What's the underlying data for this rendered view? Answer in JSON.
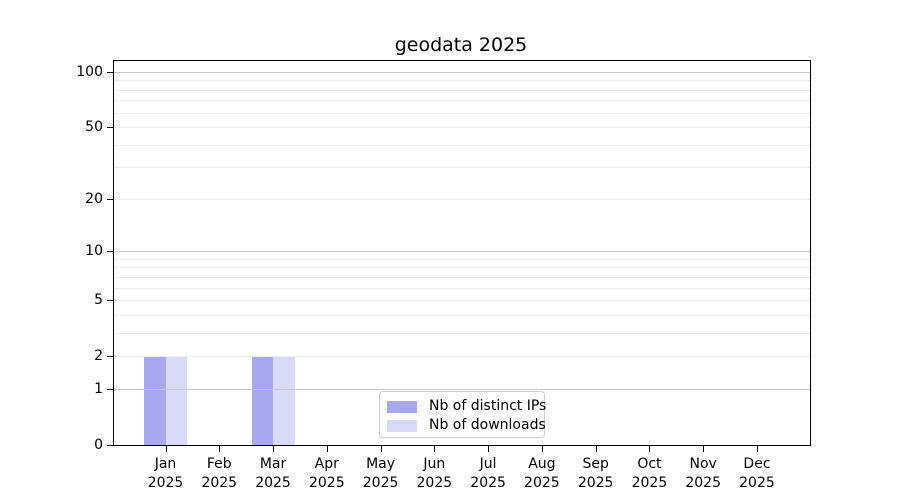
{
  "chart_data": {
    "type": "bar",
    "title": "geodata 2025",
    "categories": [
      "Jan",
      "Feb",
      "Mar",
      "Apr",
      "May",
      "Jun",
      "Jul",
      "Aug",
      "Sep",
      "Oct",
      "Nov",
      "Dec"
    ],
    "category_year": "2025",
    "series": [
      {
        "name": "Nb of distinct IPs",
        "color": "#a8a8f0",
        "values": [
          2,
          0,
          2,
          0,
          0,
          0,
          0,
          0,
          0,
          0,
          0,
          0
        ]
      },
      {
        "name": "Nb of downloads",
        "color": "#d9d9f8",
        "values": [
          2,
          0,
          2,
          0,
          0,
          0,
          0,
          0,
          0,
          0,
          0,
          0
        ]
      }
    ],
    "y_axis": {
      "scale": "log1p",
      "ylim": [
        0,
        100
      ],
      "ticks": [
        0,
        1,
        2,
        5,
        10,
        20,
        50,
        100
      ],
      "major_gridlines": [
        1,
        10,
        100
      ],
      "minor_gridlines": [
        2,
        3,
        4,
        5,
        6,
        7,
        8,
        9,
        20,
        30,
        40,
        50,
        60,
        70,
        80,
        90
      ]
    },
    "grid": true,
    "legend": {
      "position": "lower center"
    }
  },
  "colors": {
    "bar_distinct_ips": "#a8a8f0",
    "bar_downloads": "#d9d9f8",
    "grid_minor": "#ededed",
    "grid_major": "#c8c8c8",
    "axis": "#000000",
    "legend_border": "#cccccc"
  }
}
